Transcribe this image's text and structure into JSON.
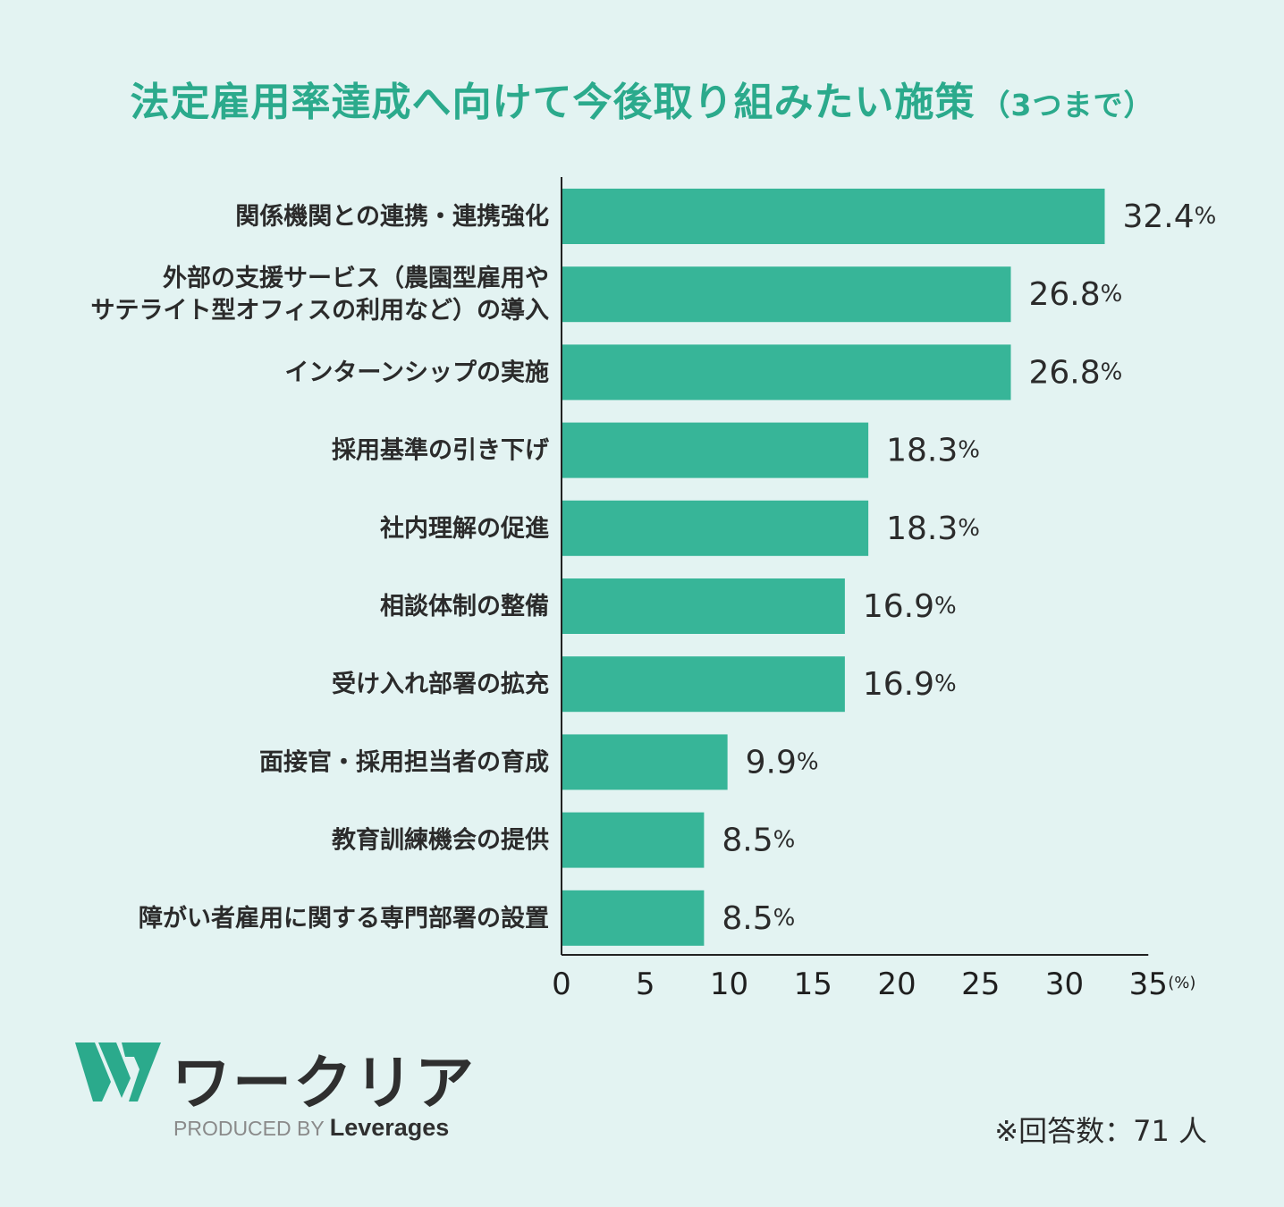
{
  "title": "法定雇用率達成へ向けて今後取り組みたい施策",
  "title_note": "（3つまで）",
  "chart_data": {
    "type": "bar",
    "orientation": "horizontal",
    "categories": [
      [
        "関係機関との連携・連携強化"
      ],
      [
        "外部の支援サービス（農園型雇用や",
        "サテライト型オフィスの利用など）の導入"
      ],
      [
        "インターンシップの実施"
      ],
      [
        "採用基準の引き下げ"
      ],
      [
        "社内理解の促進"
      ],
      [
        "相談体制の整備"
      ],
      [
        "受け入れ部署の拡充"
      ],
      [
        "面接官・採用担当者の育成"
      ],
      [
        "教育訓練機会の提供"
      ],
      [
        "障がい者雇用に関する専門部署の設置"
      ]
    ],
    "values": [
      32.4,
      26.8,
      26.8,
      18.3,
      18.3,
      16.9,
      16.9,
      9.9,
      8.5,
      8.5
    ],
    "value_suffix": "%",
    "xlim": [
      0,
      35
    ],
    "xticks": [
      0,
      5,
      10,
      15,
      20,
      25,
      30,
      35
    ],
    "x_unit": "(%)",
    "bar_color": "#37b598",
    "grid": false
  },
  "footer": {
    "logo_text": "ワークリア",
    "produced_by": "PRODUCED BY",
    "brand": "Leverages",
    "respondents": "※回答数：71 人"
  },
  "colors": {
    "background": "#e3f3f2",
    "title": "#2baa8c",
    "bar": "#37b598",
    "text": "#2b2b2b"
  }
}
